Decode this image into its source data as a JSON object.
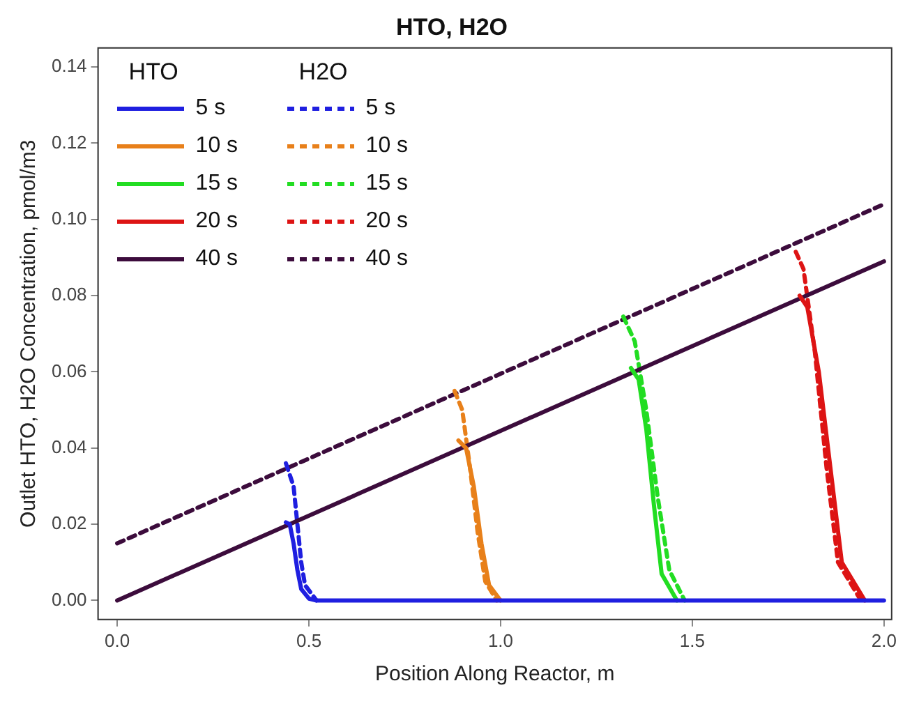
{
  "chart_data": {
    "type": "line",
    "title": "HTO, H2O",
    "xlabel": "Position Along Reactor, m",
    "ylabel": "Outlet HTO, H2O Concentration, pmol/m3",
    "xlim": [
      -0.05,
      2.02
    ],
    "xticks": [
      {
        "value": 0,
        "label": "0.0"
      },
      {
        "value": 0.5,
        "label": "0.5"
      },
      {
        "value": 1,
        "label": "1.0"
      },
      {
        "value": 1.5,
        "label": "1.5"
      },
      {
        "value": 2,
        "label": "2.0"
      }
    ],
    "ylim": [
      -0.005,
      0.145
    ],
    "yticks": [
      {
        "value": 0,
        "label": "0.00"
      },
      {
        "value": 0.02,
        "label": "0.02"
      },
      {
        "value": 0.04,
        "label": "0.04"
      },
      {
        "value": 0.06,
        "label": "0.06"
      },
      {
        "value": 0.08,
        "label": "0.08"
      },
      {
        "value": 0.1,
        "label": "0.10"
      },
      {
        "value": 0.12,
        "label": "0.12"
      },
      {
        "value": 0.14,
        "label": "0.14"
      }
    ],
    "grid": false,
    "legend": "top left",
    "annotations": [
      "HTO",
      "H2O"
    ],
    "series": [
      {
        "name": "5 s",
        "color": "#1f1fe0",
        "line_style": "solid",
        "x": [
          0.44,
          0.45,
          0.46,
          0.47,
          0.48,
          0.5,
          0.52,
          2
        ],
        "values": [
          0.0205,
          0.02,
          0.015,
          0.008,
          0.003,
          0.0005,
          0,
          0
        ]
      },
      {
        "name": "10 s",
        "color": "#e8801a",
        "line_style": "solid",
        "x": [
          0.89,
          0.91,
          0.93,
          0.95,
          0.97,
          1.0
        ],
        "values": [
          0.042,
          0.04,
          0.03,
          0.015,
          0.004,
          0
        ]
      },
      {
        "name": "15 s",
        "color": "#22dd22",
        "line_style": "solid",
        "x": [
          1.34,
          1.36,
          1.38,
          1.4,
          1.42,
          1.46
        ],
        "values": [
          0.061,
          0.058,
          0.045,
          0.025,
          0.007,
          0
        ]
      },
      {
        "name": "20 s",
        "color": "#dd1414",
        "line_style": "solid",
        "x": [
          1.78,
          1.8,
          1.83,
          1.86,
          1.89,
          1.95
        ],
        "values": [
          0.08,
          0.077,
          0.06,
          0.035,
          0.01,
          0
        ]
      },
      {
        "name": "40 s",
        "color": "#3c0c3c",
        "line_style": "solid",
        "x": [
          0,
          2
        ],
        "values": [
          0,
          0.089
        ]
      },
      {
        "name": "5 s",
        "color": "#1f1fe0",
        "line_style": "dashed",
        "x": [
          0.44,
          0.46,
          0.47,
          0.48,
          0.49,
          0.52
        ],
        "values": [
          0.036,
          0.03,
          0.02,
          0.01,
          0.004,
          0
        ]
      },
      {
        "name": "10 s",
        "color": "#e8801a",
        "line_style": "dashed",
        "x": [
          0.88,
          0.9,
          0.92,
          0.94,
          0.96,
          0.99
        ],
        "values": [
          0.055,
          0.05,
          0.035,
          0.018,
          0.005,
          0
        ]
      },
      {
        "name": "15 s",
        "color": "#22dd22",
        "line_style": "dashed",
        "x": [
          1.32,
          1.35,
          1.38,
          1.41,
          1.44,
          1.48
        ],
        "values": [
          0.0745,
          0.068,
          0.05,
          0.027,
          0.008,
          0
        ]
      },
      {
        "name": "20 s",
        "color": "#dd1414",
        "line_style": "dashed",
        "x": [
          1.77,
          1.79,
          1.82,
          1.85,
          1.88,
          1.94
        ],
        "values": [
          0.0915,
          0.087,
          0.065,
          0.035,
          0.01,
          0
        ]
      },
      {
        "name": "40 s",
        "color": "#3c0c3c",
        "line_style": "dashed",
        "x": [
          0,
          2
        ],
        "values": [
          0.015,
          0.104
        ]
      }
    ]
  }
}
